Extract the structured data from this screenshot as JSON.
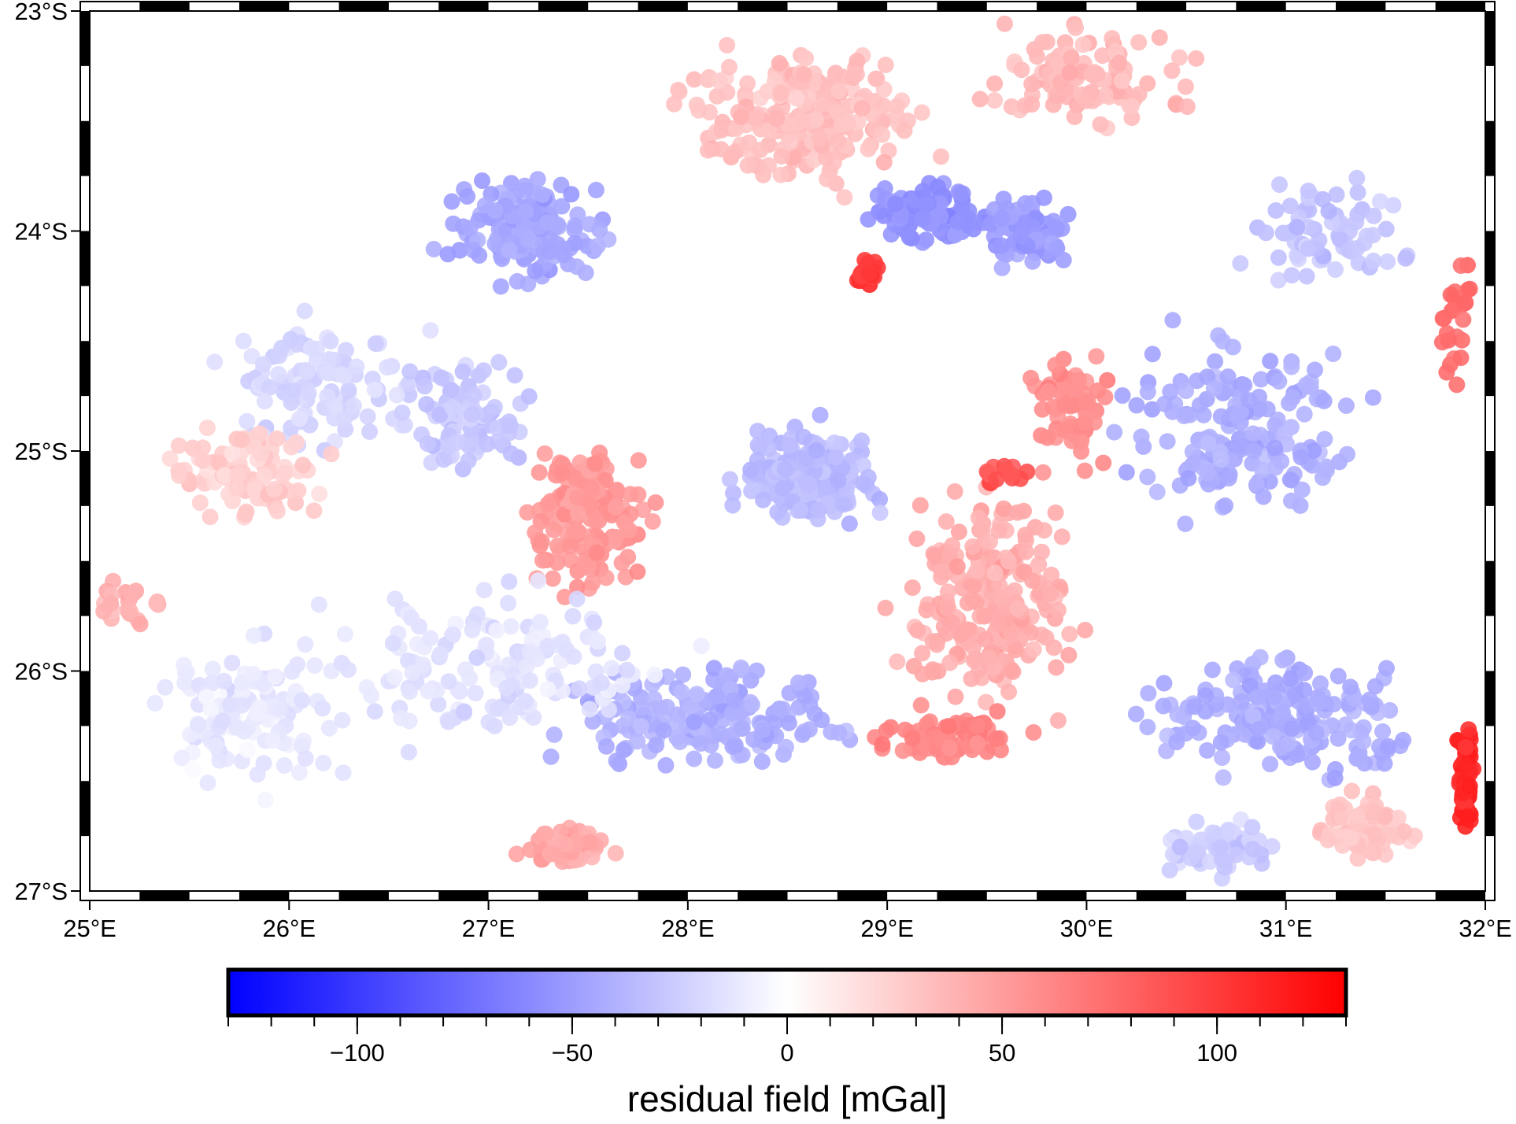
{
  "map": {
    "extent": {
      "lon": [
        25,
        32
      ],
      "lat": [
        -27,
        -23
      ]
    },
    "frame_style": "plain-fancy-checkered",
    "x_ticks": [
      {
        "value": 25,
        "label": "25°E"
      },
      {
        "value": 26,
        "label": "26°E"
      },
      {
        "value": 27,
        "label": "27°E"
      },
      {
        "value": 28,
        "label": "28°E"
      },
      {
        "value": 29,
        "label": "29°E"
      },
      {
        "value": 30,
        "label": "30°E"
      },
      {
        "value": 31,
        "label": "31°E"
      },
      {
        "value": 32,
        "label": "32°E"
      }
    ],
    "y_ticks": [
      {
        "value": -23,
        "label": "23°S"
      },
      {
        "value": -24,
        "label": "24°S"
      },
      {
        "value": -25,
        "label": "25°S"
      },
      {
        "value": -26,
        "label": "26°S"
      },
      {
        "value": -27,
        "label": "27°S"
      }
    ],
    "point_series": {
      "description_of_encoding": "gravity stations colored by residual value",
      "clusters": [
        {
          "lon": 27.2,
          "lat": -24.0,
          "value": -45,
          "spread": [
            0.5,
            0.3
          ],
          "n": 160
        },
        {
          "lon": 28.6,
          "lat": -23.5,
          "value": 32,
          "spread": [
            0.8,
            0.4
          ],
          "n": 220
        },
        {
          "lon": 28.9,
          "lat": -24.2,
          "value": 100,
          "spread": [
            0.08,
            0.08
          ],
          "n": 28
        },
        {
          "lon": 29.2,
          "lat": -23.9,
          "value": -55,
          "spread": [
            0.35,
            0.18
          ],
          "n": 110
        },
        {
          "lon": 29.7,
          "lat": -24.0,
          "value": -50,
          "spread": [
            0.25,
            0.2
          ],
          "n": 90
        },
        {
          "lon": 30.0,
          "lat": -23.3,
          "value": 35,
          "spread": [
            0.7,
            0.3
          ],
          "n": 110
        },
        {
          "lon": 26.2,
          "lat": -24.7,
          "value": -20,
          "spread": [
            0.7,
            0.4
          ],
          "n": 110
        },
        {
          "lon": 26.9,
          "lat": -24.9,
          "value": -28,
          "spread": [
            0.4,
            0.35
          ],
          "n": 90
        },
        {
          "lon": 25.8,
          "lat": -25.1,
          "value": 25,
          "spread": [
            0.5,
            0.3
          ],
          "n": 90
        },
        {
          "lon": 27.5,
          "lat": -25.3,
          "value": 52,
          "spread": [
            0.4,
            0.45
          ],
          "n": 170
        },
        {
          "lon": 28.6,
          "lat": -25.1,
          "value": -35,
          "spread": [
            0.5,
            0.3
          ],
          "n": 170
        },
        {
          "lon": 29.5,
          "lat": -25.7,
          "value": 42,
          "spread": [
            0.55,
            0.6
          ],
          "n": 230
        },
        {
          "lon": 29.6,
          "lat": -25.1,
          "value": 88,
          "spread": [
            0.15,
            0.08
          ],
          "n": 14
        },
        {
          "lon": 29.9,
          "lat": -24.8,
          "value": 58,
          "spread": [
            0.35,
            0.35
          ],
          "n": 60
        },
        {
          "lon": 29.3,
          "lat": -26.3,
          "value": 62,
          "spread": [
            0.45,
            0.15
          ],
          "n": 90
        },
        {
          "lon": 28.1,
          "lat": -26.2,
          "value": -40,
          "spread": [
            0.9,
            0.3
          ],
          "n": 180
        },
        {
          "lon": 27.0,
          "lat": -26.0,
          "value": -15,
          "spread": [
            1.2,
            0.5
          ],
          "n": 150
        },
        {
          "lon": 25.8,
          "lat": -26.2,
          "value": -12,
          "spread": [
            0.6,
            0.45
          ],
          "n": 110
        },
        {
          "lon": 27.4,
          "lat": -26.8,
          "value": 45,
          "spread": [
            0.3,
            0.12
          ],
          "n": 50
        },
        {
          "lon": 30.8,
          "lat": -24.9,
          "value": -42,
          "spread": [
            0.8,
            0.6
          ],
          "n": 170
        },
        {
          "lon": 31.0,
          "lat": -26.2,
          "value": -42,
          "spread": [
            0.8,
            0.35
          ],
          "n": 200
        },
        {
          "lon": 30.6,
          "lat": -26.8,
          "value": -25,
          "spread": [
            0.4,
            0.15
          ],
          "n": 60
        },
        {
          "lon": 31.2,
          "lat": -24.0,
          "value": -30,
          "spread": [
            0.6,
            0.3
          ],
          "n": 70
        },
        {
          "lon": 31.4,
          "lat": -26.7,
          "value": 30,
          "spread": [
            0.35,
            0.2
          ],
          "n": 70
        },
        {
          "lon": 31.9,
          "lat": -26.5,
          "value": 112,
          "spread": [
            0.06,
            0.35
          ],
          "n": 55
        },
        {
          "lon": 31.85,
          "lat": -24.4,
          "value": 75,
          "spread": [
            0.12,
            0.4
          ],
          "n": 25
        },
        {
          "lon": 25.2,
          "lat": -25.7,
          "value": 40,
          "spread": [
            0.2,
            0.15
          ],
          "n": 25
        }
      ]
    }
  },
  "colorbar": {
    "range": [
      -130,
      130
    ],
    "colors": {
      "low": "#0000ff",
      "mid": "#ffffff",
      "high": "#ff0000"
    },
    "ticks": [
      {
        "value": -100,
        "label": "−100"
      },
      {
        "value": -50,
        "label": "−50"
      },
      {
        "value": 0,
        "label": "0"
      },
      {
        "value": 50,
        "label": "50"
      },
      {
        "value": 100,
        "label": "100"
      }
    ],
    "minor_step": 10,
    "label": "residual field [mGal]"
  }
}
